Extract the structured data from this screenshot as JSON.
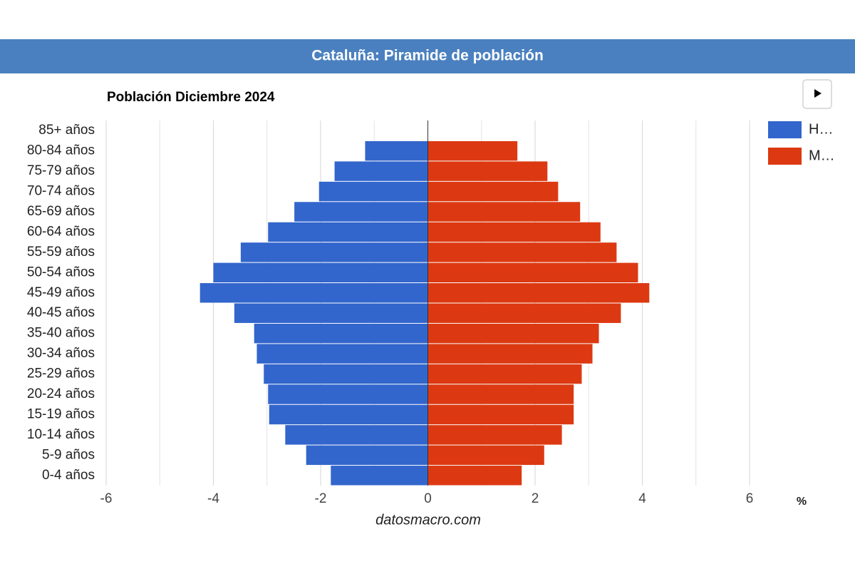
{
  "chart_data": {
    "type": "pyramid",
    "header": "Cataluña: Piramide de población",
    "title": "Población Diciembre 2024",
    "categories": [
      "85+ años",
      "80-84 años",
      "75-79 años",
      "70-74 años",
      "65-69 años",
      "60-64 años",
      "55-59 años",
      "50-54 años",
      "45-49 años",
      "40-45 años",
      "35-40 años",
      "30-34 años",
      "25-29 años",
      "20-24 años",
      "15-19 años",
      "10-14 años",
      "5-9 años",
      "0-4 años"
    ],
    "series": [
      {
        "name": "H…",
        "color": "#3366cc",
        "values": [
          null,
          -1.17,
          -1.74,
          -2.03,
          -2.49,
          -2.98,
          -3.49,
          -4.0,
          -4.25,
          -3.61,
          -3.24,
          -3.19,
          -3.06,
          -2.98,
          -2.96,
          -2.66,
          -2.27,
          -1.81
        ]
      },
      {
        "name": "M…",
        "color": "#dc3912",
        "values": [
          null,
          1.67,
          2.23,
          2.43,
          2.84,
          3.22,
          3.52,
          3.92,
          4.13,
          3.6,
          3.19,
          3.07,
          2.87,
          2.72,
          2.72,
          2.5,
          2.17,
          1.75
        ]
      }
    ],
    "xlim": [
      -6,
      6
    ],
    "xticks": [
      -6,
      -4,
      -2,
      0,
      2,
      4,
      6
    ],
    "minor_xticks": [
      -5,
      -3,
      -1,
      1,
      3,
      5
    ],
    "x_unit": "%",
    "source": "datosmacro.com",
    "grid": true,
    "legend": "right"
  }
}
